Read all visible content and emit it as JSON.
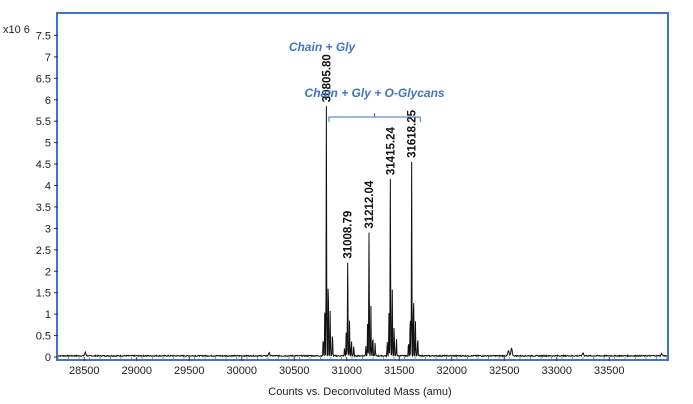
{
  "chart_data": {
    "type": "line",
    "title": "",
    "xlabel": "Counts vs. Deconvoluted Mass (amu)",
    "ylabel": "",
    "y_multiplier": "x10 6",
    "xlim": [
      28250,
      34050
    ],
    "ylim": [
      0,
      8.0
    ],
    "x_ticks": [
      28500,
      29000,
      29500,
      30000,
      30500,
      31000,
      31500,
      32000,
      32500,
      33000,
      33500
    ],
    "y_ticks": [
      0,
      0.5,
      1,
      1.5,
      2,
      2.5,
      3,
      3.5,
      4,
      4.5,
      5,
      5.5,
      6,
      6.5,
      7,
      7.5
    ],
    "y_tick_labels": [
      "0",
      "0.5",
      "1",
      "1.5",
      "2",
      "2.5",
      "3",
      "3.5",
      "4",
      "4.5",
      "5",
      "5.5",
      "6",
      "6.5",
      "7",
      "7.5"
    ],
    "grid": false,
    "frame_color": "#4472C4",
    "trace_color": "#111111",
    "peaks": [
      {
        "x": 30805.8,
        "y": 5.85,
        "label": "30805.80"
      },
      {
        "x": 31008.79,
        "y": 2.2,
        "label": "31008.79"
      },
      {
        "x": 31212.04,
        "y": 2.9,
        "label": "31212.04"
      },
      {
        "x": 31415.24,
        "y": 4.15,
        "label": "31415.24"
      },
      {
        "x": 31618.25,
        "y": 4.55,
        "label": "31618.25"
      }
    ],
    "minor_peaks": [
      {
        "x": 28510,
        "y": 0.08
      },
      {
        "x": 30260,
        "y": 0.07
      },
      {
        "x": 32540,
        "y": 0.12
      },
      {
        "x": 32570,
        "y": 0.18
      },
      {
        "x": 33250,
        "y": 0.07
      },
      {
        "x": 34000,
        "y": 0.05
      }
    ],
    "annotations": [
      {
        "text": "Chain + Gly"
      },
      {
        "text": "Chain + Gly + O-Glycans",
        "bracket_x": [
          30830,
          31700
        ]
      }
    ]
  }
}
